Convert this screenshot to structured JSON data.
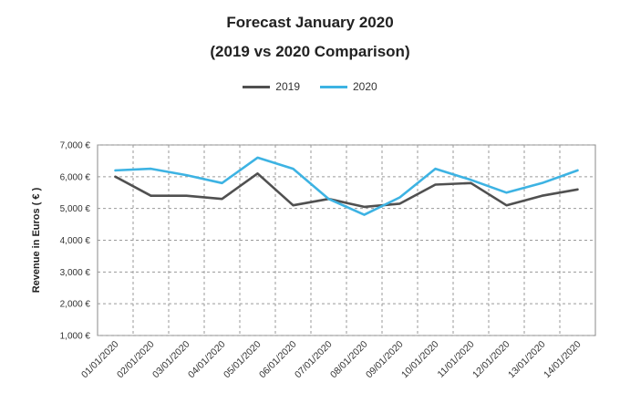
{
  "chart_data": {
    "type": "line",
    "title": "Forecast January 2020",
    "subtitle": "(2019 vs 2020 Comparison)",
    "ylabel": "Revenue in Euros ( € )",
    "xlabel": "",
    "ylim": [
      1000,
      7000
    ],
    "yticks": [
      "1,000 €",
      "2,000 €",
      "3,000 €",
      "4,000 €",
      "5,000 €",
      "6,000 €",
      "7,000 €"
    ],
    "categories": [
      "01/01/2020",
      "02/01/2020",
      "03/01/2020",
      "04/01/2020",
      "05/01/2020",
      "06/01/2020",
      "07/01/2020",
      "08/01/2020",
      "09/01/2020",
      "10/01/2020",
      "11/01/2020",
      "12/01/2020",
      "13/01/2020",
      "14/01/2020"
    ],
    "series": [
      {
        "name": "2019",
        "color": "#505050",
        "values": [
          6000,
          5400,
          5400,
          5300,
          6100,
          5100,
          5300,
          5050,
          5150,
          5750,
          5800,
          5100,
          5400,
          5600
        ]
      },
      {
        "name": "2020",
        "color": "#3db3e3",
        "values": [
          6200,
          6250,
          6050,
          5800,
          6600,
          6250,
          5300,
          4800,
          5350,
          6250,
          5900,
          5500,
          5800,
          6200
        ]
      }
    ],
    "grid": true,
    "legend_position": "top-center"
  }
}
